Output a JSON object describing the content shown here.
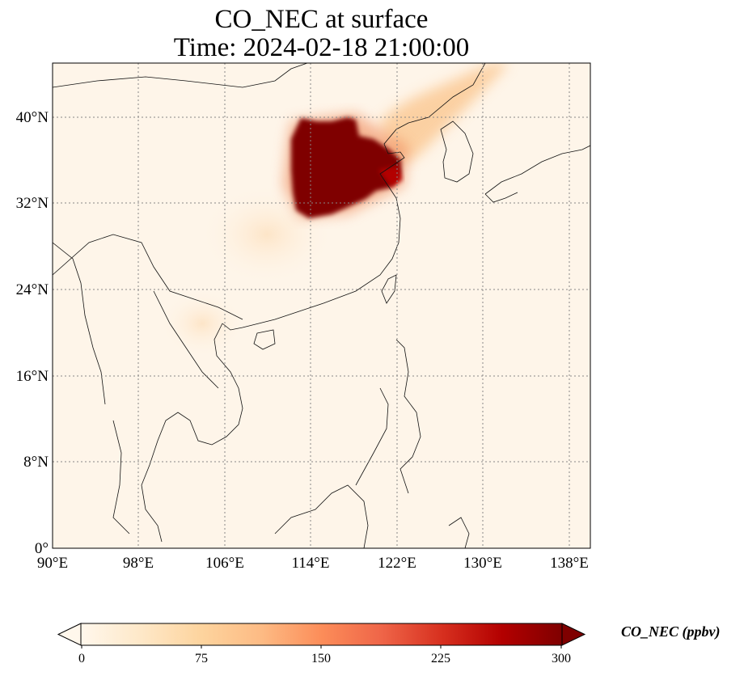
{
  "title": {
    "line1": "CO_NEC at surface",
    "line2": "Time: 2024-02-18 21:00:00"
  },
  "map": {
    "lat_labels": [
      "40°N",
      "32°N",
      "24°N",
      "16°N",
      "8°N",
      "0°"
    ],
    "lon_labels": [
      "90°E",
      "98°E",
      "106°E",
      "114°E",
      "122°E",
      "130°E",
      "138°E"
    ],
    "extent": {
      "lon_min": 90,
      "lon_max": 140,
      "lat_min": 0,
      "lat_max": 45
    },
    "gridlines": "dotted",
    "colormap": "OrRd"
  },
  "colorbar": {
    "label": "CO_NEC (ppbv)",
    "ticks": [
      "0",
      "75",
      "150",
      "225",
      "300"
    ],
    "range": [
      0,
      300
    ],
    "extend": "both",
    "colors": [
      "#fff7ec",
      "#fee8c8",
      "#fdd49e",
      "#fdbb84",
      "#fc8d59",
      "#ef6548",
      "#d7301f",
      "#b30000",
      "#7f0000"
    ]
  },
  "chart_data": {
    "type": "heatmap",
    "variable": "CO_NEC",
    "units": "ppbv",
    "level": "surface",
    "time": "2024-02-18 21:00:00",
    "lon_range": [
      90,
      140
    ],
    "lat_range": [
      0,
      45
    ],
    "max_plume": {
      "lon_range": [
        112,
        118.5
      ],
      "lat_range": [
        31,
        40
      ],
      "value": ">=300"
    },
    "secondary_plume": {
      "lon_range": [
        118,
        128
      ],
      "lat_range": [
        38,
        45
      ],
      "value_range": [
        40,
        120
      ]
    },
    "background": {
      "value_range": [
        0,
        25
      ]
    }
  }
}
